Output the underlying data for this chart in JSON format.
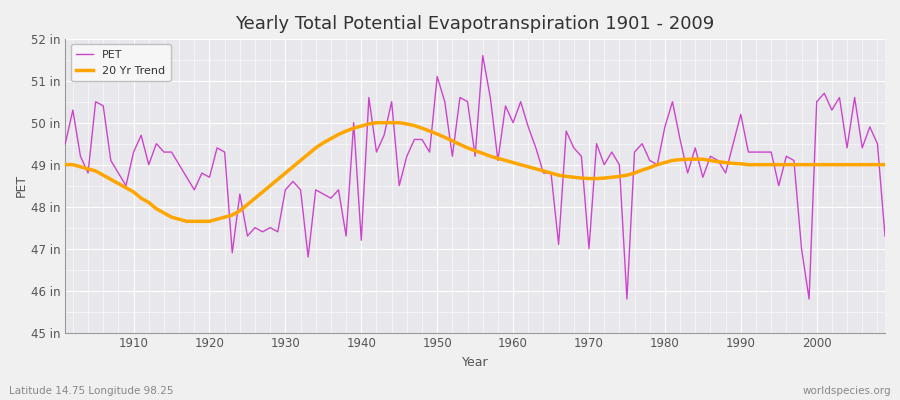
{
  "title": "Yearly Total Potential Evapotranspiration 1901 - 2009",
  "xlabel": "Year",
  "ylabel": "PET",
  "subtitle_left": "Latitude 14.75 Longitude 98.25",
  "subtitle_right": "worldspecies.org",
  "years": [
    1901,
    1902,
    1903,
    1904,
    1905,
    1906,
    1907,
    1908,
    1909,
    1910,
    1911,
    1912,
    1913,
    1914,
    1915,
    1916,
    1917,
    1918,
    1919,
    1920,
    1921,
    1922,
    1923,
    1924,
    1925,
    1926,
    1927,
    1928,
    1929,
    1930,
    1931,
    1932,
    1933,
    1934,
    1935,
    1936,
    1937,
    1938,
    1939,
    1940,
    1941,
    1942,
    1943,
    1944,
    1945,
    1946,
    1947,
    1948,
    1949,
    1950,
    1951,
    1952,
    1953,
    1954,
    1955,
    1956,
    1957,
    1958,
    1959,
    1960,
    1961,
    1962,
    1963,
    1964,
    1965,
    1966,
    1967,
    1968,
    1969,
    1970,
    1971,
    1972,
    1973,
    1974,
    1975,
    1976,
    1977,
    1978,
    1979,
    1980,
    1981,
    1982,
    1983,
    1984,
    1985,
    1986,
    1987,
    1988,
    1989,
    1990,
    1991,
    1992,
    1993,
    1994,
    1995,
    1996,
    1997,
    1998,
    1999,
    2000,
    2001,
    2002,
    2003,
    2004,
    2005,
    2006,
    2007,
    2008,
    2009
  ],
  "pet": [
    49.5,
    50.3,
    49.2,
    48.8,
    50.5,
    50.4,
    49.1,
    48.8,
    48.5,
    49.3,
    49.7,
    49.0,
    49.5,
    49.3,
    49.3,
    49.0,
    48.7,
    48.4,
    48.8,
    48.7,
    49.4,
    49.3,
    46.9,
    48.3,
    47.3,
    47.5,
    47.4,
    47.5,
    47.4,
    48.4,
    48.6,
    48.4,
    46.8,
    48.4,
    48.3,
    48.2,
    48.4,
    47.3,
    50.0,
    47.2,
    50.6,
    49.3,
    49.7,
    50.5,
    48.5,
    49.2,
    49.6,
    49.6,
    49.3,
    51.1,
    50.5,
    49.2,
    50.6,
    50.5,
    49.2,
    51.6,
    50.6,
    49.1,
    50.4,
    50.0,
    50.5,
    49.9,
    49.4,
    48.8,
    48.8,
    47.1,
    49.8,
    49.4,
    49.2,
    47.0,
    49.5,
    49.0,
    49.3,
    49.0,
    45.8,
    49.3,
    49.5,
    49.1,
    49.0,
    49.9,
    50.5,
    49.6,
    48.8,
    49.4,
    48.7,
    49.2,
    49.1,
    48.8,
    49.5,
    50.2,
    49.3,
    49.3,
    49.3,
    49.3,
    48.5,
    49.2,
    49.1,
    47.0,
    45.8,
    50.5,
    50.7,
    50.3,
    50.6,
    49.4,
    50.6,
    49.4,
    49.9,
    49.5,
    47.3
  ],
  "trend": [
    49.0,
    49.0,
    48.95,
    48.9,
    48.85,
    48.75,
    48.65,
    48.55,
    48.45,
    48.35,
    48.2,
    48.1,
    47.95,
    47.85,
    47.75,
    47.7,
    47.65,
    47.65,
    47.65,
    47.65,
    47.7,
    47.75,
    47.8,
    47.9,
    48.05,
    48.2,
    48.35,
    48.5,
    48.65,
    48.8,
    48.95,
    49.1,
    49.25,
    49.4,
    49.52,
    49.62,
    49.72,
    49.8,
    49.87,
    49.92,
    49.97,
    50.0,
    50.0,
    50.0,
    50.0,
    49.97,
    49.93,
    49.87,
    49.8,
    49.73,
    49.65,
    49.57,
    49.48,
    49.4,
    49.33,
    49.27,
    49.2,
    49.15,
    49.1,
    49.05,
    49.0,
    48.95,
    48.9,
    48.85,
    48.8,
    48.75,
    48.72,
    48.7,
    48.68,
    48.67,
    48.67,
    48.68,
    48.7,
    48.72,
    48.75,
    48.8,
    48.87,
    48.93,
    49.0,
    49.05,
    49.1,
    49.12,
    49.13,
    49.13,
    49.13,
    49.1,
    49.07,
    49.05,
    49.03,
    49.02,
    49.0,
    49.0,
    49.0,
    49.0,
    49.0,
    49.0,
    49.0,
    49.0,
    49.0,
    49.0,
    49.0,
    49.0,
    49.0,
    49.0,
    49.0,
    49.0,
    49.0,
    49.0,
    49.0
  ],
  "pet_color": "#CC44CC",
  "trend_color": "#FFA500",
  "fig_bg_color": "#F0F0F0",
  "plot_bg_color": "#E8E8EC",
  "grid_color": "#FFFFFF",
  "ylim": [
    45,
    52
  ],
  "ytick_labels": [
    "45 in",
    "46 in",
    "47 in",
    "48 in",
    "49 in",
    "50 in",
    "51 in",
    "52 in"
  ],
  "ytick_values": [
    45,
    46,
    47,
    48,
    49,
    50,
    51,
    52
  ],
  "xtick_values": [
    1910,
    1920,
    1930,
    1940,
    1950,
    1960,
    1970,
    1980,
    1990,
    2000
  ],
  "title_fontsize": 13,
  "label_fontsize": 9,
  "tick_fontsize": 8.5
}
